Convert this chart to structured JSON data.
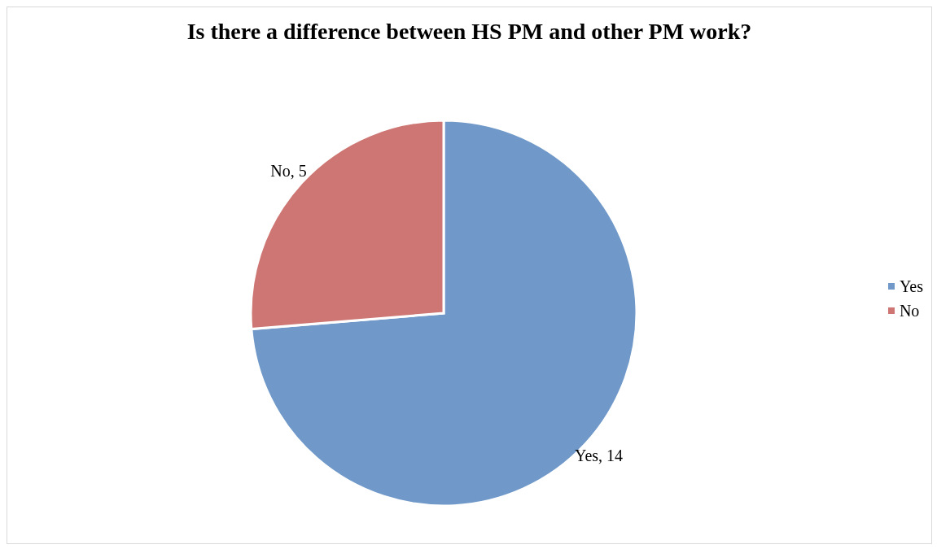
{
  "chart_data": {
    "type": "pie",
    "title": "Is there a difference between HS PM and other PM work?",
    "categories": [
      "Yes",
      "No"
    ],
    "values": [
      14,
      5
    ],
    "colors": [
      "#7099c9",
      "#cd7673"
    ],
    "value_labels": [
      "Yes, 14",
      "No, 5"
    ],
    "legend": "right"
  }
}
